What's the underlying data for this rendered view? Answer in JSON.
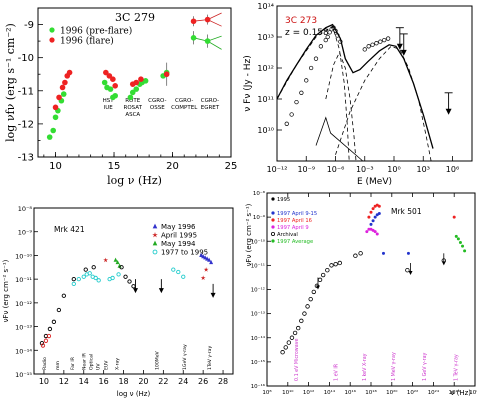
{
  "chart_data": [
    {
      "id": "p1",
      "type": "scatter",
      "title": "3C 279",
      "xlabel": "log ν  (Hz)",
      "ylabel": "log νfν  (erg s⁻¹ cm⁻²)",
      "xlim": [
        8.5,
        25
      ],
      "ylim": [
        -13,
        -8.5
      ],
      "xticks": [
        10,
        15,
        20,
        25
      ],
      "yticks": [
        -13,
        -12,
        -11,
        -10,
        -9
      ],
      "legend": "top-left",
      "band_labels": [
        {
          "x": 14.5,
          "lines": [
            "HST",
            "IUE"
          ]
        },
        {
          "x": 16.6,
          "lines": [
            "ROTE",
            "ROSAT",
            "ASCA"
          ]
        },
        {
          "x": 18.7,
          "lines": [
            "CGRO-",
            "OSSE"
          ]
        },
        {
          "x": 21.0,
          "lines": [
            "CGRO-",
            "COMPTEL"
          ]
        },
        {
          "x": 23.2,
          "lines": [
            "CGRO-",
            "EGRET"
          ]
        }
      ],
      "series": [
        {
          "name": "1996 (pre-flare)",
          "color": "#33dd33",
          "points": [
            [
              9.5,
              -12.4
            ],
            [
              9.8,
              -12.2
            ],
            [
              10.0,
              -11.8
            ],
            [
              10.2,
              -11.6
            ],
            [
              10.5,
              -11.3
            ],
            [
              10.7,
              -11.1
            ],
            [
              14.2,
              -10.75
            ],
            [
              14.4,
              -10.9
            ],
            [
              14.7,
              -10.95
            ],
            [
              14.9,
              -11.2
            ],
            [
              15.1,
              -11.15
            ],
            [
              16.4,
              -11.2
            ],
            [
              16.6,
              -11.05
            ],
            [
              16.9,
              -10.95
            ],
            [
              17.2,
              -10.8
            ],
            [
              17.4,
              -10.75
            ],
            [
              17.7,
              -10.7
            ],
            [
              19.2,
              -10.55
            ],
            [
              19.5,
              -10.45
            ],
            [
              21.8,
              -9.4
            ],
            [
              23.0,
              -9.5
            ]
          ]
        },
        {
          "name": "1996 (flare)",
          "color": "#ee2222",
          "points": [
            [
              10.0,
              -11.5
            ],
            [
              10.3,
              -11.2
            ],
            [
              10.6,
              -10.9
            ],
            [
              10.8,
              -10.75
            ],
            [
              11.0,
              -10.55
            ],
            [
              11.2,
              -10.45
            ],
            [
              14.3,
              -10.45
            ],
            [
              14.6,
              -10.55
            ],
            [
              14.9,
              -10.65
            ],
            [
              15.1,
              -10.85
            ],
            [
              16.6,
              -10.8
            ],
            [
              16.9,
              -10.75
            ],
            [
              17.3,
              -10.65
            ],
            [
              19.5,
              -10.5
            ],
            [
              21.8,
              -8.9
            ],
            [
              23.0,
              -8.85
            ]
          ]
        }
      ]
    },
    {
      "id": "p2",
      "type": "line",
      "title": "3C 273",
      "subtitle": "z = 0.158",
      "xlabel": "E (MeV)",
      "ylabel": "ν Fν (Jy - Hz)",
      "xlim": [
        -12,
        8
      ],
      "ylim": [
        9,
        14
      ],
      "xtick_labels": [
        "10⁻¹²",
        "10⁻⁹",
        "10⁻⁶",
        "10⁻³",
        "10⁰",
        "10³",
        "10⁶"
      ],
      "xtick_values": [
        -12,
        -9,
        -6,
        -3,
        0,
        3,
        6
      ],
      "ytick_labels": [
        "10¹⁰",
        "10¹¹",
        "10¹²",
        "10¹³",
        "10¹⁴"
      ],
      "ytick_values": [
        10,
        11,
        12,
        13,
        14
      ],
      "total_model": [
        [
          -12,
          11.0
        ],
        [
          -11,
          11.6
        ],
        [
          -10,
          12.1
        ],
        [
          -9,
          12.6
        ],
        [
          -8,
          13.05
        ],
        [
          -7,
          13.3
        ],
        [
          -6.3,
          13.4
        ],
        [
          -5.5,
          12.95
        ],
        [
          -5.0,
          12.3
        ],
        [
          -4.2,
          11.85
        ],
        [
          -3.5,
          11.95
        ],
        [
          -2.7,
          12.2
        ],
        [
          -1.5,
          12.55
        ],
        [
          -0.5,
          12.75
        ],
        [
          0.2,
          12.7
        ],
        [
          1.0,
          12.3
        ],
        [
          2.0,
          11.5
        ],
        [
          3.0,
          10.5
        ],
        [
          4.0,
          9.4
        ]
      ],
      "synchrotron_component": [
        [
          -12,
          11.0
        ],
        [
          -10,
          12.1
        ],
        [
          -8,
          13.0
        ],
        [
          -6.3,
          13.35
        ],
        [
          -5.6,
          12.6
        ],
        [
          -5.1,
          11.5
        ],
        [
          -4.8,
          10.2
        ],
        [
          -4.6,
          9.0
        ]
      ],
      "bump_component": [
        [
          -7.0,
          11.0
        ],
        [
          -6.2,
          12.1
        ],
        [
          -5.6,
          12.5
        ],
        [
          -5.0,
          12.0
        ],
        [
          -4.5,
          11.0
        ],
        [
          -4.1,
          9.8
        ],
        [
          -3.9,
          9.0
        ]
      ],
      "ic_component": [
        [
          -6.0,
          9.2
        ],
        [
          -4.5,
          10.6
        ],
        [
          -3.0,
          11.6
        ],
        [
          -1.5,
          12.3
        ],
        [
          -0.3,
          12.7
        ],
        [
          0.6,
          12.6
        ],
        [
          1.5,
          12.0
        ],
        [
          2.5,
          11.0
        ],
        [
          3.3,
          9.8
        ],
        [
          3.8,
          9.0
        ]
      ],
      "ssc_component": [
        [
          -8.0,
          9.5
        ],
        [
          -7.0,
          10.4
        ],
        [
          -6.5,
          9.9
        ],
        [
          -3.2,
          9.0
        ]
      ],
      "data_points": [
        [
          -11.0,
          10.2
        ],
        [
          -10.5,
          10.5
        ],
        [
          -10.0,
          10.9
        ],
        [
          -9.5,
          11.2
        ],
        [
          -9.0,
          11.6
        ],
        [
          -8.5,
          12.0
        ],
        [
          -8.0,
          12.3
        ],
        [
          -7.5,
          12.7
        ],
        [
          -7.0,
          12.9
        ],
        [
          -6.8,
          13.0
        ],
        [
          -6.6,
          13.15
        ],
        [
          -6.4,
          13.25
        ],
        [
          -6.2,
          13.3
        ],
        [
          -6.0,
          13.2
        ],
        [
          -5.8,
          13.05
        ],
        [
          -5.5,
          12.85
        ],
        [
          -3.0,
          12.6
        ],
        [
          -2.6,
          12.7
        ],
        [
          -2.2,
          12.75
        ],
        [
          -1.8,
          12.8
        ],
        [
          -1.4,
          12.85
        ],
        [
          -1.0,
          12.9
        ],
        [
          -0.6,
          12.95
        ]
      ],
      "upper_limits": [
        [
          0.6,
          13.3
        ],
        [
          1.0,
          13.1
        ],
        [
          5.6,
          11.2
        ]
      ]
    },
    {
      "id": "p3",
      "type": "scatter",
      "title": "Mrk 421",
      "xlabel": "log ν (Hz)",
      "ylabel": "νFν (erg cm⁻² s⁻¹)",
      "xlim": [
        9,
        29
      ],
      "ylim": [
        -15,
        -8
      ],
      "xticks": [
        10,
        12,
        14,
        16,
        18,
        20,
        22,
        24,
        26,
        28
      ],
      "ytick_labels": [
        "10⁻¹⁵",
        "10⁻¹⁴",
        "10⁻¹³",
        "10⁻¹²",
        "10⁻¹¹",
        "10⁻¹⁰",
        "10⁻⁹",
        "10⁻⁸"
      ],
      "ytick_values": [
        -15,
        -14,
        -13,
        -12,
        -11,
        -10,
        -9,
        -8
      ],
      "band_labels": [
        "Radio",
        "mm",
        "Far IR",
        "Near IR",
        "Optical",
        "UV",
        "EUV",
        "X-ray",
        "100MeV",
        "1GeV γ-ray",
        "1TeV γ-ray"
      ],
      "band_x": [
        10.2,
        11.5,
        13.0,
        14.2,
        14.9,
        15.6,
        16.4,
        17.5,
        21.5,
        24.3,
        26.8
      ],
      "legend": "top-right",
      "series": [
        {
          "name": "May 1996",
          "color": "#3333cc",
          "marker": "triangle",
          "points": [
            [
              25.8,
              -10.0
            ],
            [
              26.0,
              -10.05
            ],
            [
              26.2,
              -10.1
            ],
            [
              26.4,
              -10.15
            ],
            [
              26.6,
              -10.2
            ],
            [
              26.8,
              -10.3
            ]
          ]
        },
        {
          "name": "April 1995",
          "color": "#cc2222",
          "marker": "star",
          "points": [
            [
              16.2,
              -10.2
            ],
            [
              26.3,
              -10.6
            ],
            [
              26.0,
              -10.95
            ]
          ]
        },
        {
          "name": "May 1994",
          "color": "#22aa22",
          "marker": "triangle",
          "points": [
            [
              17.2,
              -10.2
            ],
            [
              17.4,
              -10.3
            ],
            [
              17.6,
              -10.45
            ]
          ]
        },
        {
          "name": "1977 to 1995",
          "color": "#22cccc",
          "marker": "circle",
          "points": [
            [
              13.0,
              -11.2
            ],
            [
              13.5,
              -11.0
            ],
            [
              14.0,
              -10.9
            ],
            [
              14.3,
              -10.8
            ],
            [
              14.6,
              -10.75
            ],
            [
              14.9,
              -10.9
            ],
            [
              15.2,
              -10.95
            ],
            [
              15.5,
              -11.05
            ],
            [
              16.6,
              -11.0
            ],
            [
              16.9,
              -10.95
            ],
            [
              17.5,
              -10.8
            ],
            [
              23.0,
              -10.6
            ],
            [
              23.5,
              -10.7
            ],
            [
              24.0,
              -10.9
            ]
          ]
        },
        {
          "name": "",
          "color": "#000000",
          "marker": "circle",
          "points": [
            [
              9.8,
              -13.7
            ],
            [
              10.2,
              -13.4
            ],
            [
              10.6,
              -13.1
            ],
            [
              11.0,
              -12.8
            ],
            [
              11.5,
              -12.3
            ],
            [
              12.0,
              -11.7
            ],
            [
              13.0,
              -11.0
            ],
            [
              14.2,
              -10.6
            ],
            [
              15.0,
              -10.5
            ],
            [
              17.8,
              -10.5
            ],
            [
              18.2,
              -10.9
            ],
            [
              18.6,
              -11.1
            ],
            [
              19.0,
              -11.3
            ]
          ]
        },
        {
          "name": "",
          "color": "#dd2222",
          "marker": "circle",
          "points": [
            [
              9.9,
              -13.8
            ],
            [
              10.2,
              -13.6
            ],
            [
              10.5,
              -13.4
            ]
          ]
        }
      ]
    },
    {
      "id": "p4",
      "type": "scatter",
      "title": "Mrk 501",
      "xlabel": "ν (Hz)",
      "ylabel": "νFν (erg cm⁻² s⁻¹)",
      "xlim": [
        8,
        28
      ],
      "ylim": [
        -16,
        -8
      ],
      "xtick_labels": [
        "10⁸",
        "10¹⁰",
        "10¹²",
        "10¹⁴",
        "10¹⁶",
        "10¹⁸",
        "10²⁰",
        "10²²",
        "10²⁴",
        "10²⁶",
        "10²⁸"
      ],
      "xtick_values": [
        8,
        10,
        12,
        14,
        16,
        18,
        20,
        22,
        24,
        26,
        28
      ],
      "ytick_labels": [
        "10⁻¹⁶",
        "10⁻¹⁵",
        "10⁻¹⁴",
        "10⁻¹³",
        "10⁻¹²",
        "10⁻¹¹",
        "10⁻¹⁰",
        "10⁻⁹",
        "10⁻⁸"
      ],
      "ytick_values": [
        -16,
        -15,
        -14,
        -13,
        -12,
        -11,
        -10,
        -9,
        -8
      ],
      "band_labels": [
        "0.1 eV Microwave",
        "1 eV IR",
        "1 keV X-ray",
        "1 MeV γ-ray",
        "1 GeV γ-ray",
        "1 TeV γ-ray"
      ],
      "band_x": [
        11.0,
        14.8,
        17.5,
        20.3,
        23.3,
        26.3
      ],
      "legend": "top-left",
      "series": [
        {
          "name": "1995",
          "color": "#000000",
          "marker": "dot",
          "points": []
        },
        {
          "name": "1996",
          "color": "#ffffff",
          "marker": "dot",
          "points": []
        },
        {
          "name": "1997 April 9-15",
          "color": "#2233cc",
          "marker": "dot",
          "points": [
            [
              18.0,
              -9.3
            ],
            [
              18.2,
              -9.15
            ],
            [
              18.4,
              -9.0
            ],
            [
              18.6,
              -8.9
            ],
            [
              18.8,
              -8.85
            ],
            [
              19.2,
              -10.5
            ],
            [
              21.6,
              -10.5
            ]
          ]
        },
        {
          "name": "1997 April 16",
          "color": "#ee2222",
          "marker": "dot",
          "points": [
            [
              17.8,
              -9.0
            ],
            [
              18.0,
              -8.8
            ],
            [
              18.2,
              -8.65
            ],
            [
              18.4,
              -8.55
            ],
            [
              18.6,
              -8.5
            ],
            [
              18.8,
              -8.55
            ],
            [
              26.0,
              -9.0
            ]
          ]
        },
        {
          "name": "1997 April 9",
          "color": "#dd22dd",
          "marker": "dot",
          "points": [
            [
              17.6,
              -9.6
            ],
            [
              17.8,
              -9.5
            ],
            [
              18.0,
              -9.5
            ],
            [
              18.2,
              -9.55
            ],
            [
              18.4,
              -9.6
            ],
            [
              18.6,
              -9.7
            ]
          ]
        },
        {
          "name": "Archival",
          "color": "#000000",
          "marker": "circle",
          "points": [
            [
              9.5,
              -14.6
            ],
            [
              9.8,
              -14.4
            ],
            [
              10.1,
              -14.2
            ],
            [
              10.4,
              -14.0
            ],
            [
              10.7,
              -13.8
            ],
            [
              11.0,
              -13.6
            ],
            [
              11.3,
              -13.3
            ],
            [
              11.6,
              -13.0
            ],
            [
              11.9,
              -12.7
            ],
            [
              12.2,
              -12.4
            ],
            [
              12.5,
              -12.1
            ],
            [
              12.8,
              -11.85
            ],
            [
              13.1,
              -11.6
            ],
            [
              13.4,
              -11.4
            ],
            [
              13.8,
              -11.2
            ],
            [
              14.2,
              -11.0
            ],
            [
              14.6,
              -10.95
            ],
            [
              15.0,
              -10.9
            ],
            [
              16.5,
              -10.6
            ],
            [
              17.0,
              -10.5
            ],
            [
              21.5,
              -11.2
            ],
            [
              25.0,
              -10.8
            ]
          ]
        },
        {
          "name": "1997 Average",
          "color": "#22bb22",
          "marker": "dot",
          "points": [
            [
              26.2,
              -9.8
            ],
            [
              26.4,
              -9.9
            ],
            [
              26.6,
              -10.05
            ],
            [
              26.8,
              -10.2
            ],
            [
              27.0,
              -10.4
            ]
          ]
        }
      ]
    }
  ]
}
